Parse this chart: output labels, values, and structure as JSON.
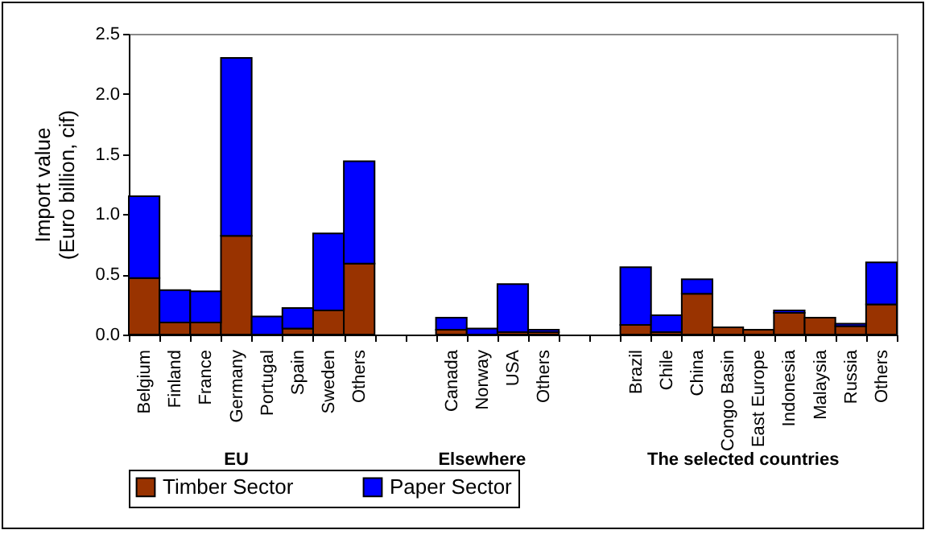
{
  "chart_data": {
    "type": "bar",
    "stacked": true,
    "ylabel": "Import value\n(Euro billion, cif)",
    "ylim": [
      0,
      2.5
    ],
    "yticks": [
      {
        "value": 0,
        "label": "0.0"
      },
      {
        "value": 0.5,
        "label": "0.5"
      },
      {
        "value": 1,
        "label": "1.0"
      },
      {
        "value": 1.5,
        "label": "1.5"
      },
      {
        "value": 2,
        "label": "2.0"
      },
      {
        "value": 2.5,
        "label": "2.5"
      }
    ],
    "categories": [
      "Belgium",
      "Finland",
      "France",
      "Germany",
      "Portugal",
      "Spain",
      "Sweden",
      "Others",
      null,
      null,
      "Canada",
      "Norway",
      "USA",
      "Others",
      null,
      null,
      "Brazil",
      "Chile",
      "China",
      "Congo Basin",
      "East Europe",
      "Indonesia",
      "Malaysia",
      "Russia",
      "Others"
    ],
    "series": [
      {
        "name": "Timber Sector",
        "color": "#993300",
        "values": [
          0.47,
          0.1,
          0.1,
          0.82,
          null,
          0.05,
          0.2,
          0.59,
          null,
          null,
          0.04,
          null,
          0.02,
          0.02,
          null,
          null,
          0.08,
          0.02,
          0.34,
          0.06,
          0.04,
          0.18,
          0.14,
          0.07,
          0.25
        ]
      },
      {
        "name": "Paper Sector",
        "color": "#0000ff",
        "values": [
          0.68,
          0.27,
          0.26,
          1.48,
          0.15,
          0.17,
          0.64,
          0.85,
          null,
          null,
          0.1,
          0.05,
          0.4,
          0.02,
          null,
          null,
          0.48,
          0.14,
          0.12,
          null,
          null,
          0.02,
          null,
          0.02,
          0.35
        ]
      }
    ],
    "annotations": [
      "EU",
      "Elsewhere",
      "The selected countries"
    ],
    "grid": false,
    "legend": "bottom"
  }
}
